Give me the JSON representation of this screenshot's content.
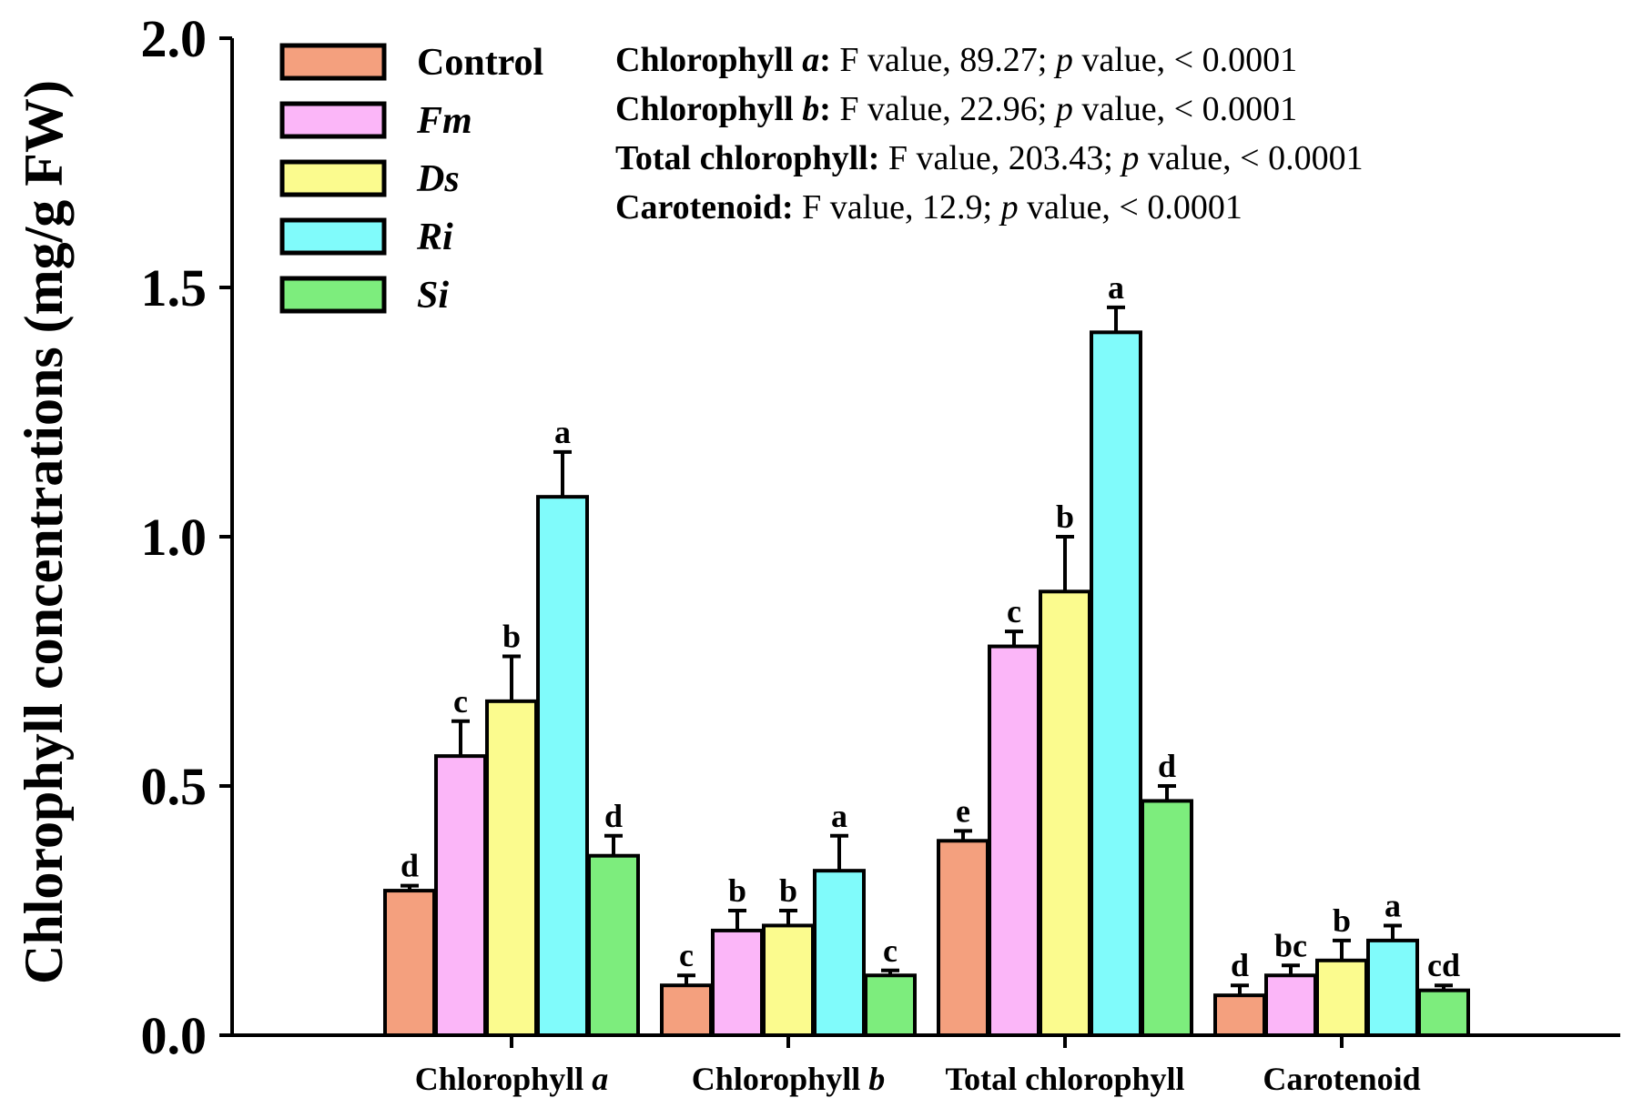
{
  "chart_data": {
    "type": "bar",
    "title": "",
    "ylabel": "Chlorophyll concentrations (mg/g FW)",
    "xlabel": "",
    "ylim": [
      0,
      2.0
    ],
    "yticks": [
      "0.0",
      "0.5",
      "1.0",
      "1.5",
      "2.0"
    ],
    "ytick_values": [
      0,
      0.5,
      1.0,
      1.5,
      2.0
    ],
    "grid": false,
    "legend_position": "top-left",
    "categories": [
      {
        "prefix": "Chlorophyll ",
        "italic": "a"
      },
      {
        "prefix": "Chlorophyll ",
        "italic": "b"
      },
      {
        "prefix": "Total chlorophyll",
        "italic": ""
      },
      {
        "prefix": "Carotenoid",
        "italic": ""
      }
    ],
    "series": [
      {
        "name": "Control",
        "italic": false,
        "color": "#F4A07E",
        "values": [
          0.29,
          0.1,
          0.39,
          0.08
        ],
        "errors": [
          0.01,
          0.02,
          0.02,
          0.02
        ],
        "letters": [
          "d",
          "c",
          "e",
          "d"
        ]
      },
      {
        "name": "Fm",
        "italic": true,
        "color": "#FBB6F8",
        "values": [
          0.56,
          0.21,
          0.78,
          0.12
        ],
        "errors": [
          0.07,
          0.04,
          0.03,
          0.02
        ],
        "letters": [
          "c",
          "b",
          "c",
          "bc"
        ]
      },
      {
        "name": "Ds",
        "italic": true,
        "color": "#FBFB8E",
        "values": [
          0.67,
          0.22,
          0.89,
          0.15
        ],
        "errors": [
          0.09,
          0.03,
          0.11,
          0.04
        ],
        "letters": [
          "b",
          "b",
          "b",
          "b"
        ]
      },
      {
        "name": "Ri",
        "italic": true,
        "color": "#80FBFB",
        "values": [
          1.08,
          0.33,
          1.41,
          0.19
        ],
        "errors": [
          0.09,
          0.07,
          0.05,
          0.03
        ],
        "letters": [
          "a",
          "a",
          "a",
          "a"
        ]
      },
      {
        "name": "Si",
        "italic": true,
        "color": "#7DED7D",
        "values": [
          0.36,
          0.12,
          0.47,
          0.09
        ],
        "errors": [
          0.04,
          0.01,
          0.03,
          0.01
        ],
        "letters": [
          "d",
          "c",
          "d",
          "cd"
        ]
      }
    ],
    "annotations": [
      {
        "bold": "Chlorophyll ",
        "bold_italic": "a",
        "colon": ":",
        "f": " F value, 89.27; ",
        "p": "p",
        "rest": " value, < 0.0001"
      },
      {
        "bold": "Chlorophyll ",
        "bold_italic": "b",
        "colon": ":",
        "f": " F value, 22.96; ",
        "p": "p",
        "rest": " value, < 0.0001"
      },
      {
        "bold": "Total chlorophyll",
        "bold_italic": "",
        "colon": ":",
        "f": " F value, 203.43; ",
        "p": "p",
        "rest": " value, < 0.0001"
      },
      {
        "bold": "Carotenoid",
        "bold_italic": "",
        "colon": ":",
        "f": " F value, 12.9; ",
        "p": "p",
        "rest": " value, < 0.0001"
      }
    ]
  }
}
